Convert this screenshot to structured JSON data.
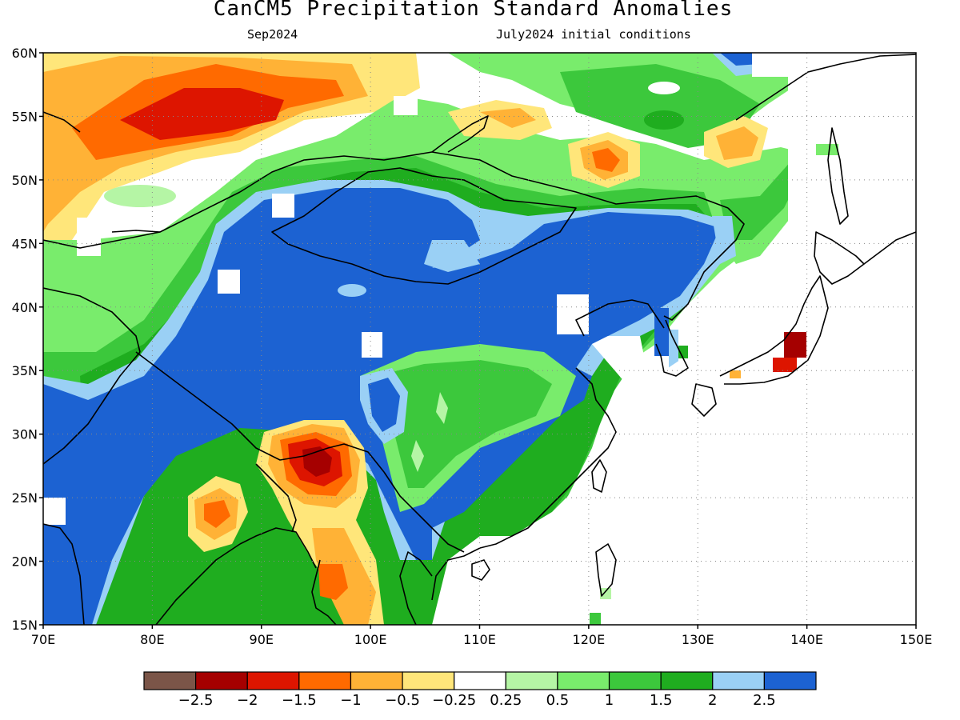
{
  "header": {
    "title": "CanCM5 Precipitation Standard Anomalies",
    "subtitle_left": "Sep2024",
    "subtitle_right": "July2024 initial conditions"
  },
  "axes": {
    "lon_ticks": [
      "70E",
      "80E",
      "90E",
      "100E",
      "110E",
      "120E",
      "130E",
      "140E",
      "150E"
    ],
    "lat_ticks": [
      "15N",
      "20N",
      "25N",
      "30N",
      "35N",
      "40N",
      "45N",
      "50N",
      "55N",
      "60N"
    ],
    "lon_range": [
      70,
      150
    ],
    "lat_range": [
      15,
      60
    ],
    "grid": "dotted"
  },
  "legend": {
    "placement": "bottom-center",
    "colors": [
      "#7b5548",
      "#a50000",
      "#dd1500",
      "#ff6a00",
      "#ffb236",
      "#ffe67a",
      "#ffffff",
      "#b5f5a5",
      "#79ec6c",
      "#3cc83c",
      "#1fad1f",
      "#9ad0f5",
      "#1c62d2"
    ],
    "labels": [
      "−2.5",
      "−2",
      "−1.5",
      "−1",
      "−0.5",
      "−0.25",
      "0.25",
      "0.5",
      "1",
      "1.5",
      "2",
      "2.5"
    ]
  },
  "colors": {
    "dry_extreme": "#a50000",
    "dry": "#ff6a00",
    "wet": "#1fad1f",
    "wet_extreme": "#1c62d2"
  }
}
